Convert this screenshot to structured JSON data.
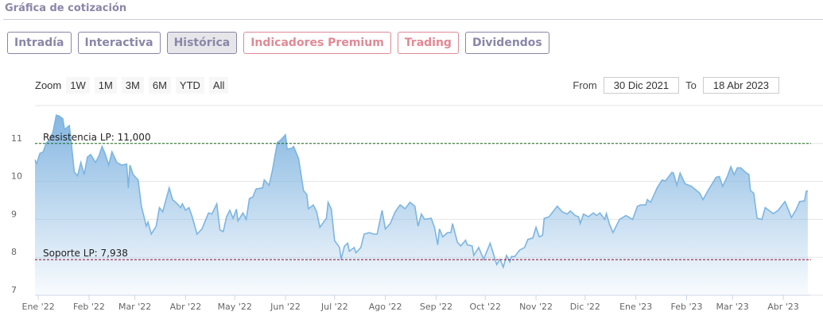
{
  "header": {
    "title": "Gráfica de cotización"
  },
  "tabs": [
    {
      "label": "Intradía",
      "style": "normal"
    },
    {
      "label": "Interactiva",
      "style": "normal"
    },
    {
      "label": "Histórica",
      "style": "active"
    },
    {
      "label": "Indicadores Premium",
      "style": "red"
    },
    {
      "label": "Trading",
      "style": "red"
    },
    {
      "label": "Dividendos",
      "style": "normal"
    }
  ],
  "zoom": {
    "label": "Zoom",
    "buttons": [
      "1W",
      "1M",
      "3M",
      "6M",
      "YTD",
      "All"
    ]
  },
  "range": {
    "from_label": "From",
    "from_value": "30 Dic 2021",
    "to_label": "To",
    "to_value": "18 Abr 2023"
  },
  "colors": {
    "line": "#7cb5e2",
    "fill_top": "#7fb3e0",
    "resistance": "#1a6b1a",
    "support": "#8b0a2a"
  },
  "chart_data": {
    "type": "area",
    "xlabel": "days since 30 Dic 2021",
    "ylabel": "",
    "xlim": [
      0,
      474
    ],
    "ylim": [
      7,
      12
    ],
    "yticks": [
      7,
      8,
      9,
      10,
      11
    ],
    "xticks": [
      {
        "day": 2,
        "label": "Ene '22"
      },
      {
        "day": 33,
        "label": "Feb '22"
      },
      {
        "day": 61,
        "label": "Mar '22"
      },
      {
        "day": 92,
        "label": "Abr '22"
      },
      {
        "day": 122,
        "label": "May '22"
      },
      {
        "day": 153,
        "label": "Jun '22"
      },
      {
        "day": 183,
        "label": "Jul '22"
      },
      {
        "day": 214,
        "label": "Ago '22"
      },
      {
        "day": 245,
        "label": "Sep '22"
      },
      {
        "day": 275,
        "label": "Oct '22"
      },
      {
        "day": 306,
        "label": "Nov '22"
      },
      {
        "day": 336,
        "label": "Dic '22"
      },
      {
        "day": 367,
        "label": "Ene '23"
      },
      {
        "day": 398,
        "label": "Feb '23"
      },
      {
        "day": 426,
        "label": "Mar '23"
      },
      {
        "day": 457,
        "label": "Abr '23"
      }
    ],
    "plotlines": [
      {
        "label": "Resistencia LP: 11,000",
        "value": 11.0,
        "kind": "resistance"
      },
      {
        "label": "Soporte LP: 7,938",
        "value": 7.938,
        "kind": "support"
      }
    ],
    "series": [
      {
        "name": "Cotización",
        "points": [
          [
            0,
            10.57
          ],
          [
            1,
            10.47
          ],
          [
            3,
            10.74
          ],
          [
            5,
            10.78
          ],
          [
            7,
            11.02
          ],
          [
            9,
            11.09
          ],
          [
            11,
            11.3
          ],
          [
            13,
            11.75
          ],
          [
            15,
            11.72
          ],
          [
            17,
            11.65
          ],
          [
            18,
            11.37
          ],
          [
            21,
            11.47
          ],
          [
            22,
            11.09
          ],
          [
            24,
            10.25
          ],
          [
            26,
            10.15
          ],
          [
            28,
            10.5
          ],
          [
            30,
            10.18
          ],
          [
            32,
            10.64
          ],
          [
            34,
            10.71
          ],
          [
            37,
            10.5
          ],
          [
            39,
            10.67
          ],
          [
            41,
            10.92
          ],
          [
            43,
            10.71
          ],
          [
            45,
            10.43
          ],
          [
            47,
            10.78
          ],
          [
            50,
            10.5
          ],
          [
            53,
            10.43
          ],
          [
            56,
            10.46
          ],
          [
            57,
            9.83
          ],
          [
            58,
            10.43
          ],
          [
            60,
            10.18
          ],
          [
            63,
            10.04
          ],
          [
            65,
            9.35
          ],
          [
            68,
            8.82
          ],
          [
            69,
            8.93
          ],
          [
            71,
            8.61
          ],
          [
            74,
            8.82
          ],
          [
            76,
            9.31
          ],
          [
            78,
            9.2
          ],
          [
            82,
            9.83
          ],
          [
            84,
            9.52
          ],
          [
            86,
            9.45
          ],
          [
            89,
            9.31
          ],
          [
            90,
            9.41
          ],
          [
            92,
            9.24
          ],
          [
            94,
            9.31
          ],
          [
            96,
            9.07
          ],
          [
            99,
            8.61
          ],
          [
            102,
            8.75
          ],
          [
            104,
            8.96
          ],
          [
            106,
            9.17
          ],
          [
            108,
            9.14
          ],
          [
            111,
            9.41
          ],
          [
            113,
            8.72
          ],
          [
            115,
            8.68
          ],
          [
            117,
            9.07
          ],
          [
            119,
            9.24
          ],
          [
            121,
            9.03
          ],
          [
            123,
            9.27
          ],
          [
            124,
            8.96
          ],
          [
            127,
            9.17
          ],
          [
            129,
            9.0
          ],
          [
            131,
            9.55
          ],
          [
            133,
            9.59
          ],
          [
            135,
            9.8
          ],
          [
            139,
            9.83
          ],
          [
            140,
            10.04
          ],
          [
            143,
            9.9
          ],
          [
            145,
            10.29
          ],
          [
            148,
            11.02
          ],
          [
            150,
            11.09
          ],
          [
            153,
            11.23
          ],
          [
            154,
            10.85
          ],
          [
            157,
            10.88
          ],
          [
            158,
            10.92
          ],
          [
            161,
            10.6
          ],
          [
            162,
            10.32
          ],
          [
            164,
            9.76
          ],
          [
            166,
            9.66
          ],
          [
            167,
            9.28
          ],
          [
            170,
            9.38
          ],
          [
            172,
            9.2
          ],
          [
            174,
            8.79
          ],
          [
            178,
            9.03
          ],
          [
            179,
            9.45
          ],
          [
            181,
            9.27
          ],
          [
            183,
            8.44
          ],
          [
            186,
            8.26
          ],
          [
            187,
            7.95
          ],
          [
            189,
            8.3
          ],
          [
            191,
            8.37
          ],
          [
            192,
            8.16
          ],
          [
            195,
            8.26
          ],
          [
            196,
            8.12
          ],
          [
            199,
            8.26
          ],
          [
            201,
            8.61
          ],
          [
            204,
            8.65
          ],
          [
            207,
            8.61
          ],
          [
            209,
            8.61
          ],
          [
            212,
            9.24
          ],
          [
            214,
            8.75
          ],
          [
            217,
            8.89
          ],
          [
            220,
            9.2
          ],
          [
            223,
            9.38
          ],
          [
            226,
            9.28
          ],
          [
            229,
            9.45
          ],
          [
            232,
            9.35
          ],
          [
            234,
            8.82
          ],
          [
            236,
            9.14
          ],
          [
            238,
            9.0
          ],
          [
            242,
            9.03
          ],
          [
            244,
            8.79
          ],
          [
            246,
            8.33
          ],
          [
            247,
            8.75
          ],
          [
            249,
            8.54
          ],
          [
            252,
            8.65
          ],
          [
            254,
            8.65
          ],
          [
            255,
            8.89
          ],
          [
            258,
            8.4
          ],
          [
            260,
            8.3
          ],
          [
            263,
            8.45
          ],
          [
            264,
            8.33
          ],
          [
            267,
            8.3
          ],
          [
            268,
            8.05
          ],
          [
            271,
            8.26
          ],
          [
            274,
            7.95
          ],
          [
            278,
            8.37
          ],
          [
            282,
            7.81
          ],
          [
            284,
            7.95
          ],
          [
            286,
            7.74
          ],
          [
            288,
            8.05
          ],
          [
            290,
            7.88
          ],
          [
            291,
            8.02
          ],
          [
            293,
            8.02
          ],
          [
            296,
            8.19
          ],
          [
            299,
            8.26
          ],
          [
            301,
            8.47
          ],
          [
            304,
            8.51
          ],
          [
            306,
            8.79
          ],
          [
            308,
            8.54
          ],
          [
            310,
            8.58
          ],
          [
            311,
            9.03
          ],
          [
            314,
            9.07
          ],
          [
            319,
            9.35
          ],
          [
            322,
            9.2
          ],
          [
            325,
            9.14
          ],
          [
            327,
            9.22
          ],
          [
            330,
            9.1
          ],
          [
            332,
            9.07
          ],
          [
            333,
            8.89
          ],
          [
            335,
            9.14
          ],
          [
            338,
            9.07
          ],
          [
            341,
            9.17
          ],
          [
            343,
            9.1
          ],
          [
            345,
            9.17
          ],
          [
            348,
            9.0
          ],
          [
            349,
            9.15
          ],
          [
            351,
            8.86
          ],
          [
            353,
            8.65
          ],
          [
            357,
            9.0
          ],
          [
            361,
            9.1
          ],
          [
            365,
            9.0
          ],
          [
            368,
            9.35
          ],
          [
            370,
            9.38
          ],
          [
            373,
            9.38
          ],
          [
            374,
            9.52
          ],
          [
            376,
            9.45
          ],
          [
            380,
            9.83
          ],
          [
            383,
            10.04
          ],
          [
            385,
            10.01
          ],
          [
            389,
            10.24
          ],
          [
            390,
            10.22
          ],
          [
            392,
            9.9
          ],
          [
            394,
            10.22
          ],
          [
            397,
            9.94
          ],
          [
            401,
            9.87
          ],
          [
            406,
            9.69
          ],
          [
            408,
            9.52
          ],
          [
            411,
            9.76
          ],
          [
            416,
            10.11
          ],
          [
            418,
            10.13
          ],
          [
            420,
            9.87
          ],
          [
            423,
            10.15
          ],
          [
            425,
            10.39
          ],
          [
            427,
            10.18
          ],
          [
            429,
            10.36
          ],
          [
            431,
            10.36
          ],
          [
            434,
            10.24
          ],
          [
            436,
            10.18
          ],
          [
            437,
            9.76
          ],
          [
            439,
            9.69
          ],
          [
            441,
            9.03
          ],
          [
            444,
            9.0
          ],
          [
            446,
            9.31
          ],
          [
            451,
            9.15
          ],
          [
            454,
            9.24
          ],
          [
            458,
            9.47
          ],
          [
            459,
            9.38
          ],
          [
            462,
            9.05
          ],
          [
            465,
            9.27
          ],
          [
            467,
            9.47
          ],
          [
            470,
            9.49
          ],
          [
            471,
            9.73
          ],
          [
            472,
            9.76
          ]
        ]
      }
    ]
  }
}
